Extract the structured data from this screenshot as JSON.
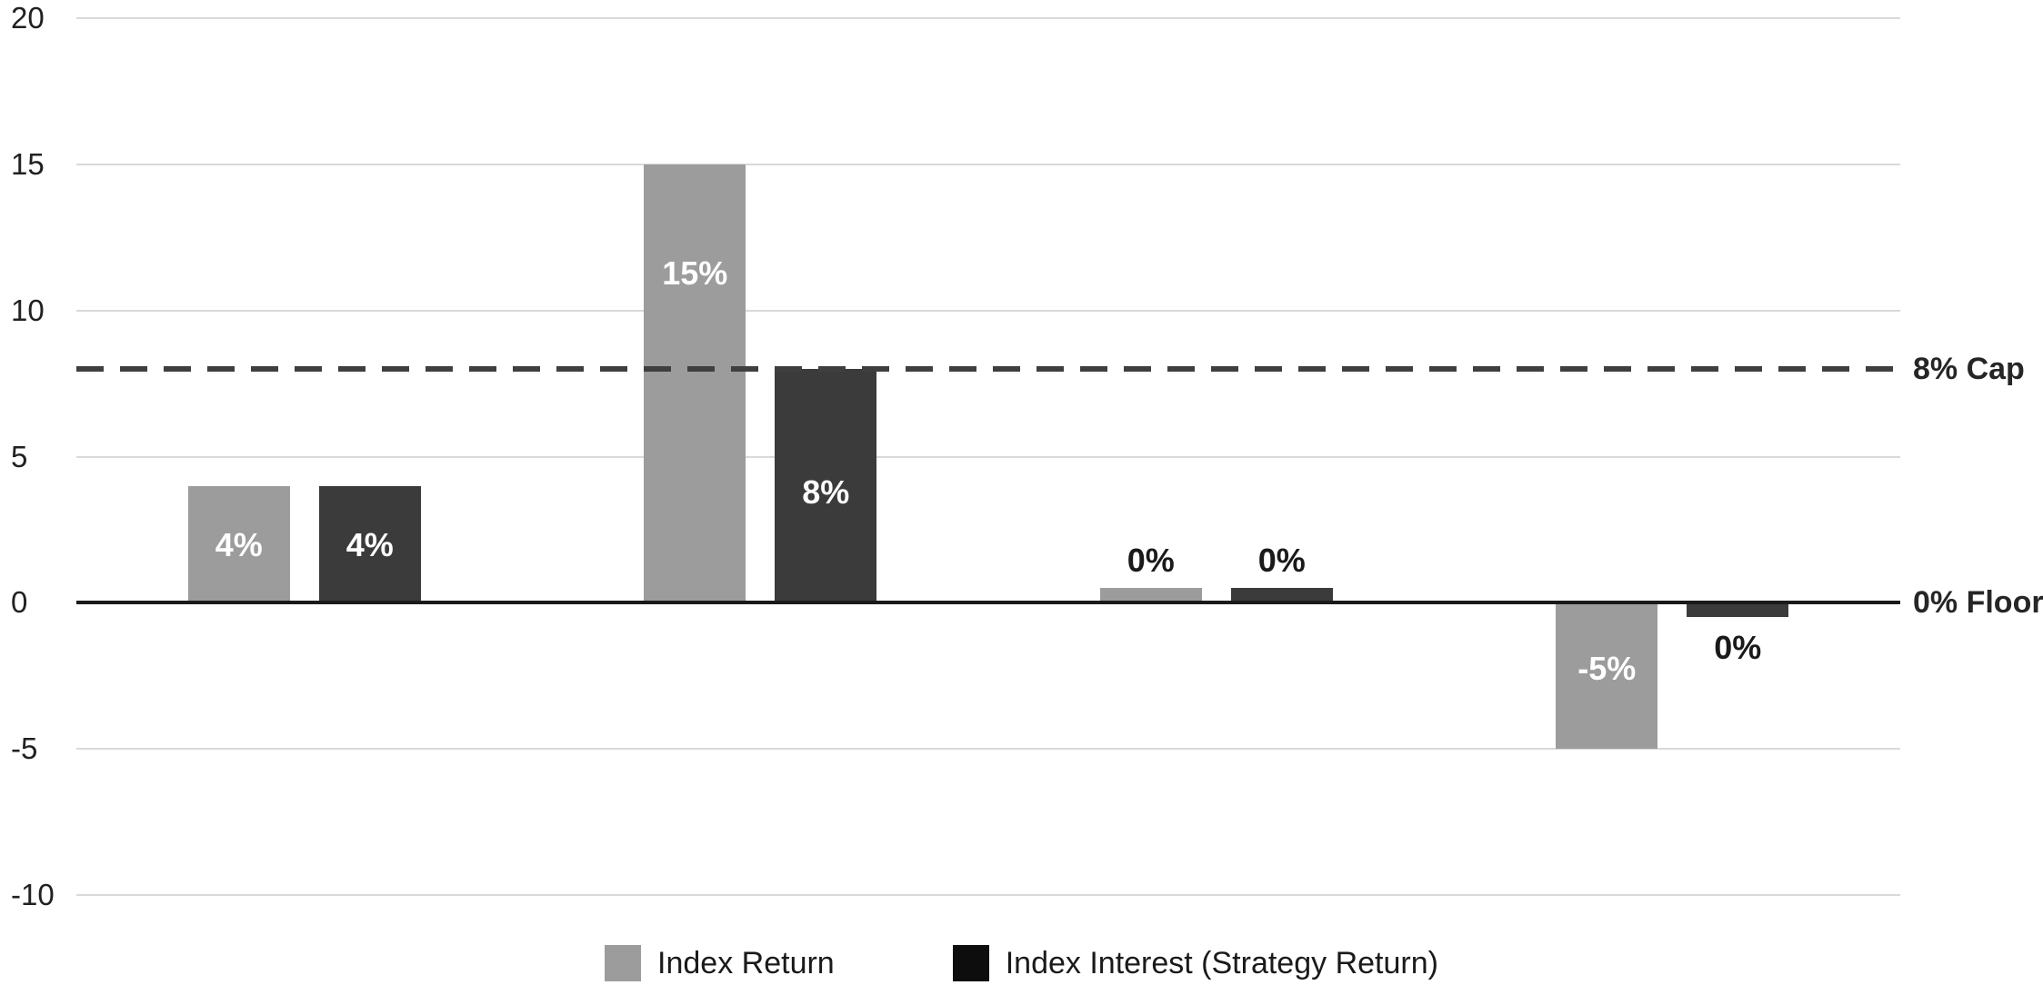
{
  "chart_data": {
    "type": "bar",
    "title": "",
    "group_count": 4,
    "series": [
      {
        "name": "Index Return",
        "color": "#9c9c9c",
        "values": [
          4,
          15,
          0,
          -5
        ],
        "labels": [
          "4%",
          "15%",
          "0%",
          "-5%"
        ],
        "label_placements": [
          "inside",
          "inside",
          "above",
          "inside"
        ],
        "bar_draw_values": [
          4,
          15,
          0.5,
          -5
        ]
      },
      {
        "name": "Index Interest (Strategy Return)",
        "color": "#3b3b3b",
        "legend_swatch_color": "#0d0d0d",
        "values": [
          4,
          8,
          0,
          0
        ],
        "labels": [
          "4%",
          "8%",
          "0%",
          "0%"
        ],
        "label_placements": [
          "inside",
          "inside",
          "above",
          "below"
        ],
        "bar_draw_values": [
          4,
          8,
          0.5,
          -0.5
        ]
      }
    ],
    "yticks": [
      20,
      15,
      10,
      5,
      0,
      -5,
      -10
    ],
    "ylim": [
      -10,
      20
    ],
    "grid": "horizontal",
    "gridline_color": "#d9d9d9",
    "legend_position": "bottom",
    "annotations": [
      {
        "type": "hline",
        "y": 8,
        "style": "dashed",
        "label": "8% Cap",
        "color": "#3f3f3f"
      },
      {
        "type": "hline",
        "y": 0,
        "style": "solid",
        "label": "0% Floor",
        "color": "#1a1a1a"
      }
    ]
  }
}
